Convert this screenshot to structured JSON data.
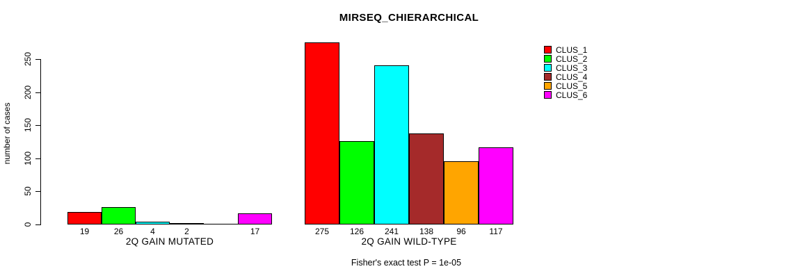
{
  "chart_data": {
    "type": "bar",
    "title": "MIRSEQ_CHIERARCHICAL",
    "ylabel": "number of cases",
    "xlabel": "",
    "ylim": [
      0,
      250
    ],
    "yticks": [
      0,
      50,
      100,
      150,
      200,
      250
    ],
    "grid": false,
    "legend_position": "right",
    "categories": [
      "2Q GAIN MUTATED",
      "2Q GAIN WILD-TYPE"
    ],
    "series": [
      {
        "name": "CLUS_1",
        "color": "#FF0000",
        "values": [
          19,
          275
        ]
      },
      {
        "name": "CLUS_2",
        "color": "#00FF00",
        "values": [
          26,
          126
        ]
      },
      {
        "name": "CLUS_3",
        "color": "#00FFFF",
        "values": [
          4,
          241
        ]
      },
      {
        "name": "CLUS_4",
        "color": "#A52A2A",
        "values": [
          2,
          138
        ]
      },
      {
        "name": "CLUS_5",
        "color": "#FFA500",
        "values": [
          0,
          96
        ]
      },
      {
        "name": "CLUS_6",
        "color": "#FF00FF",
        "values": [
          17,
          117
        ]
      }
    ],
    "bar_value_labels": [
      [
        "19",
        "26",
        "4",
        "2",
        "",
        "17"
      ],
      [
        "275",
        "126",
        "241",
        "138",
        "96",
        "117"
      ]
    ],
    "annotation": "Fisher's exact test P = 1e-05"
  }
}
